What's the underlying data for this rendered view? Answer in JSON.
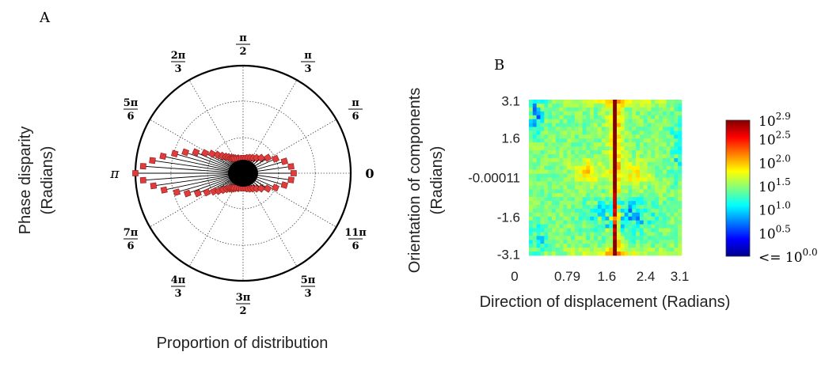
{
  "panel_a_label": "A",
  "panel_b_label": "B",
  "chart_data": [
    {
      "type": "polar-bar",
      "panel": "A",
      "ylabel_line1": "Phase disparity",
      "ylabel_line2": "(Radians)",
      "xlabel": "Proportion of distribution",
      "angle_labels": [
        {
          "angle_deg": 0,
          "num": "0",
          "den": "",
          "prefix": ""
        },
        {
          "angle_deg": 30,
          "num": "π",
          "den": "6",
          "prefix": ""
        },
        {
          "angle_deg": 60,
          "num": "π",
          "den": "3",
          "prefix": ""
        },
        {
          "angle_deg": 90,
          "num": "π",
          "den": "2",
          "prefix": ""
        },
        {
          "angle_deg": 120,
          "num": "2π",
          "den": "3",
          "prefix": ""
        },
        {
          "angle_deg": 150,
          "num": "5π",
          "den": "6",
          "prefix": ""
        },
        {
          "angle_deg": 180,
          "num": "π",
          "den": "",
          "prefix": ""
        },
        {
          "angle_deg": 210,
          "num": "7π",
          "den": "6",
          "prefix": ""
        },
        {
          "angle_deg": 240,
          "num": "4π",
          "den": "3",
          "prefix": ""
        },
        {
          "angle_deg": 270,
          "num": "3π",
          "den": "2",
          "prefix": ""
        },
        {
          "angle_deg": 300,
          "num": "5π",
          "den": "3",
          "prefix": ""
        },
        {
          "angle_deg": 330,
          "num": "11π",
          "den": "6",
          "prefix": ""
        }
      ],
      "radial_grid_fractions": [
        0.33,
        0.67,
        1.0
      ],
      "bar_color": "#e03c3c",
      "bars": [
        {
          "angle_deg": 180,
          "r": 1.0
        },
        {
          "angle_deg": 176,
          "r": 0.93
        },
        {
          "angle_deg": 184,
          "r": 0.93
        },
        {
          "angle_deg": 172,
          "r": 0.85
        },
        {
          "angle_deg": 188,
          "r": 0.84
        },
        {
          "angle_deg": 168,
          "r": 0.76
        },
        {
          "angle_deg": 192,
          "r": 0.75
        },
        {
          "angle_deg": 164,
          "r": 0.66
        },
        {
          "angle_deg": 196,
          "r": 0.64
        },
        {
          "angle_deg": 160,
          "r": 0.57
        },
        {
          "angle_deg": 200,
          "r": 0.55
        },
        {
          "angle_deg": 156,
          "r": 0.48
        },
        {
          "angle_deg": 204,
          "r": 0.46
        },
        {
          "angle_deg": 152,
          "r": 0.4
        },
        {
          "angle_deg": 208,
          "r": 0.38
        },
        {
          "angle_deg": 148,
          "r": 0.34
        },
        {
          "angle_deg": 212,
          "r": 0.32
        },
        {
          "angle_deg": 144,
          "r": 0.29
        },
        {
          "angle_deg": 216,
          "r": 0.28
        },
        {
          "angle_deg": 140,
          "r": 0.25
        },
        {
          "angle_deg": 220,
          "r": 0.24
        },
        {
          "angle_deg": 136,
          "r": 0.22
        },
        {
          "angle_deg": 224,
          "r": 0.21
        },
        {
          "angle_deg": 132,
          "r": 0.2
        },
        {
          "angle_deg": 228,
          "r": 0.19
        },
        {
          "angle_deg": 128,
          "r": 0.18
        },
        {
          "angle_deg": 232,
          "r": 0.18
        },
        {
          "angle_deg": 124,
          "r": 0.17
        },
        {
          "angle_deg": 236,
          "r": 0.17
        },
        {
          "angle_deg": 120,
          "r": 0.16
        },
        {
          "angle_deg": 240,
          "r": 0.16
        },
        {
          "angle_deg": 112,
          "r": 0.15
        },
        {
          "angle_deg": 248,
          "r": 0.15
        },
        {
          "angle_deg": 104,
          "r": 0.14
        },
        {
          "angle_deg": 256,
          "r": 0.14
        },
        {
          "angle_deg": 96,
          "r": 0.14
        },
        {
          "angle_deg": 264,
          "r": 0.14
        },
        {
          "angle_deg": 88,
          "r": 0.14
        },
        {
          "angle_deg": 272,
          "r": 0.14
        },
        {
          "angle_deg": 80,
          "r": 0.14
        },
        {
          "angle_deg": 280,
          "r": 0.14
        },
        {
          "angle_deg": 72,
          "r": 0.15
        },
        {
          "angle_deg": 288,
          "r": 0.15
        },
        {
          "angle_deg": 64,
          "r": 0.16
        },
        {
          "angle_deg": 296,
          "r": 0.16
        },
        {
          "angle_deg": 56,
          "r": 0.17
        },
        {
          "angle_deg": 304,
          "r": 0.17
        },
        {
          "angle_deg": 48,
          "r": 0.19
        },
        {
          "angle_deg": 312,
          "r": 0.19
        },
        {
          "angle_deg": 40,
          "r": 0.22
        },
        {
          "angle_deg": 320,
          "r": 0.22
        },
        {
          "angle_deg": 32,
          "r": 0.27
        },
        {
          "angle_deg": 328,
          "r": 0.27
        },
        {
          "angle_deg": 24,
          "r": 0.33
        },
        {
          "angle_deg": 336,
          "r": 0.33
        },
        {
          "angle_deg": 16,
          "r": 0.4
        },
        {
          "angle_deg": 344,
          "r": 0.4
        },
        {
          "angle_deg": 8,
          "r": 0.45
        },
        {
          "angle_deg": 352,
          "r": 0.45
        },
        {
          "angle_deg": 0,
          "r": 0.47
        }
      ]
    },
    {
      "type": "heatmap",
      "panel": "B",
      "xlabel": "Direction of displacement (Radians)",
      "ylabel_line1": "Orientation of components",
      "ylabel_line2": "(Radians)",
      "x_ticks": [
        {
          "value": 0,
          "label": "0"
        },
        {
          "value": 0.79,
          "label": "0.79"
        },
        {
          "value": 1.6,
          "label": "1.6"
        },
        {
          "value": 2.4,
          "label": "2.4"
        },
        {
          "value": 3.1,
          "label": "3.1"
        }
      ],
      "xlim": [
        0,
        3.14
      ],
      "y_ticks": [
        {
          "value": 3.1,
          "label": "3.1"
        },
        {
          "value": 1.6,
          "label": "1.6"
        },
        {
          "value": -0.00011,
          "label": "-0.00011"
        },
        {
          "value": -1.6,
          "label": "-1.6"
        },
        {
          "value": -3.1,
          "label": "-3.1"
        }
      ],
      "ylim": [
        -3.14,
        3.14
      ],
      "grid_cols": 40,
      "grid_rows": 40,
      "colorscale": "jet",
      "log_range": [
        0.0,
        2.9
      ],
      "colorbar_labels": [
        {
          "exp": 2.9,
          "base": "10",
          "sup": "2.9",
          "prefix": ""
        },
        {
          "exp": 2.5,
          "base": "10",
          "sup": "2.5",
          "prefix": ""
        },
        {
          "exp": 2.0,
          "base": "10",
          "sup": "2.0",
          "prefix": ""
        },
        {
          "exp": 1.5,
          "base": "10",
          "sup": "1.5",
          "prefix": ""
        },
        {
          "exp": 1.0,
          "base": "10",
          "sup": "1.0",
          "prefix": ""
        },
        {
          "exp": 0.5,
          "base": "10",
          "sup": "0.5",
          "prefix": ""
        },
        {
          "exp": 0.0,
          "base": "10",
          "sup": "0.0",
          "prefix": "<= "
        }
      ]
    }
  ]
}
